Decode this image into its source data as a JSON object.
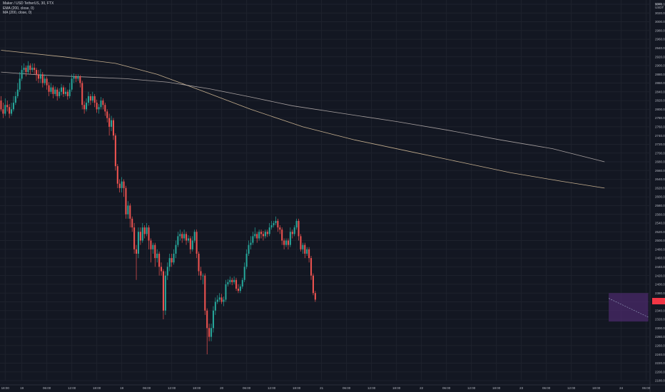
{
  "header": {
    "symbol_line": "Maker / USD TetherUS, 30, FTX",
    "ema_line": "EMA (200, close, 0)",
    "ma_line": "MA (200, close, 0)"
  },
  "axis": {
    "unit_line1": "USD",
    "unit_line2": "USDT"
  },
  "colors": {
    "background": "#131722",
    "grid": "#1e222d",
    "up": "#26a69a",
    "down": "#ef5350",
    "ema": "#ffe0b2",
    "ma": "#d7ccc8",
    "projection_box": "#4a2a6a",
    "price_tag": "#f23645"
  },
  "chart_data": {
    "type": "candlestick",
    "ylim": [
      2180,
      3040
    ],
    "y_ticks": [
      3040,
      3020,
      3000,
      2980,
      2960,
      2940,
      2920,
      2900,
      2880,
      2860,
      2840,
      2820,
      2800,
      2780,
      2760,
      2740,
      2720,
      2700,
      2680,
      2660,
      2640,
      2620,
      2600,
      2580,
      2560,
      2540,
      2520,
      2500,
      2480,
      2460,
      2440,
      2420,
      2400,
      2380,
      2360,
      2340,
      2320,
      2300,
      2280,
      2260,
      2240,
      2220,
      2200,
      2180
    ],
    "x_ticks": [
      {
        "label": "18:00",
        "i": 2
      },
      {
        "label": "19",
        "i": 10
      },
      {
        "label": "06:00",
        "i": 22
      },
      {
        "label": "12:00",
        "i": 34
      },
      {
        "label": "18:00",
        "i": 46
      },
      {
        "label": "19",
        "i": 58
      },
      {
        "label": "06:00",
        "i": 70
      },
      {
        "label": "12:00",
        "i": 82
      },
      {
        "label": "18:00",
        "i": 94
      },
      {
        "label": "20",
        "i": 106
      },
      {
        "label": "06:00",
        "i": 118
      },
      {
        "label": "12:00",
        "i": 130
      },
      {
        "label": "18:00",
        "i": 142
      },
      {
        "label": "21",
        "i": 154
      },
      {
        "label": "06:00",
        "i": 166
      },
      {
        "label": "12:00",
        "i": 178
      },
      {
        "label": "18:00",
        "i": 190
      },
      {
        "label": "22",
        "i": 202
      },
      {
        "label": "06:00",
        "i": 214
      },
      {
        "label": "12:00",
        "i": 226
      },
      {
        "label": "18:00",
        "i": 238
      },
      {
        "label": "23",
        "i": 250
      },
      {
        "label": "06:00",
        "i": 262
      },
      {
        "label": "12:00",
        "i": 274
      },
      {
        "label": "18:00",
        "i": 286
      },
      {
        "label": "24",
        "i": 298
      },
      {
        "label": "06:00",
        "i": 310
      }
    ],
    "candles": [
      [
        2820,
        2800,
        2830,
        2795
      ],
      [
        2800,
        2790,
        2815,
        2780
      ],
      [
        2790,
        2810,
        2825,
        2785
      ],
      [
        2810,
        2805,
        2820,
        2795
      ],
      [
        2805,
        2790,
        2812,
        2780
      ],
      [
        2790,
        2800,
        2815,
        2785
      ],
      [
        2800,
        2815,
        2830,
        2795
      ],
      [
        2815,
        2830,
        2840,
        2810
      ],
      [
        2830,
        2845,
        2860,
        2825
      ],
      [
        2845,
        2870,
        2885,
        2840
      ],
      [
        2870,
        2890,
        2900,
        2865
      ],
      [
        2890,
        2895,
        2905,
        2880
      ],
      [
        2895,
        2885,
        2900,
        2875
      ],
      [
        2885,
        2900,
        2910,
        2880
      ],
      [
        2900,
        2890,
        2905,
        2880
      ],
      [
        2890,
        2895,
        2905,
        2885
      ],
      [
        2895,
        2890,
        2905,
        2880
      ],
      [
        2890,
        2880,
        2895,
        2865
      ],
      [
        2880,
        2870,
        2890,
        2860
      ],
      [
        2870,
        2880,
        2892,
        2860
      ],
      [
        2880,
        2860,
        2885,
        2850
      ],
      [
        2860,
        2870,
        2880,
        2855
      ],
      [
        2870,
        2855,
        2875,
        2845
      ],
      [
        2855,
        2840,
        2862,
        2830
      ],
      [
        2840,
        2850,
        2860,
        2835
      ],
      [
        2850,
        2835,
        2855,
        2825
      ],
      [
        2835,
        2845,
        2852,
        2830
      ],
      [
        2845,
        2830,
        2850,
        2820
      ],
      [
        2830,
        2840,
        2848,
        2825
      ],
      [
        2840,
        2850,
        2858,
        2832
      ],
      [
        2850,
        2835,
        2855,
        2828
      ],
      [
        2835,
        2840,
        2850,
        2830
      ],
      [
        2840,
        2830,
        2845,
        2822
      ],
      [
        2830,
        2845,
        2860,
        2825
      ],
      [
        2845,
        2870,
        2880,
        2840
      ],
      [
        2870,
        2875,
        2882,
        2860
      ],
      [
        2875,
        2870,
        2880,
        2862
      ],
      [
        2870,
        2875,
        2880,
        2865
      ],
      [
        2875,
        2860,
        2878,
        2850
      ],
      [
        2860,
        2810,
        2865,
        2800
      ],
      [
        2810,
        2800,
        2818,
        2790
      ],
      [
        2800,
        2815,
        2825,
        2795
      ],
      [
        2815,
        2830,
        2840,
        2808
      ],
      [
        2830,
        2820,
        2835,
        2810
      ],
      [
        2820,
        2830,
        2840,
        2815
      ],
      [
        2830,
        2815,
        2835,
        2805
      ],
      [
        2815,
        2800,
        2822,
        2792
      ],
      [
        2800,
        2805,
        2812,
        2790
      ],
      [
        2805,
        2820,
        2828,
        2800
      ],
      [
        2820,
        2810,
        2825,
        2800
      ],
      [
        2810,
        2795,
        2815,
        2785
      ],
      [
        2795,
        2780,
        2800,
        2770
      ],
      [
        2780,
        2760,
        2790,
        2740
      ],
      [
        2760,
        2775,
        2785,
        2750
      ],
      [
        2775,
        2740,
        2780,
        2730
      ],
      [
        2740,
        2670,
        2745,
        2660
      ],
      [
        2670,
        2630,
        2675,
        2620
      ],
      [
        2630,
        2620,
        2640,
        2610
      ],
      [
        2620,
        2635,
        2645,
        2610
      ],
      [
        2635,
        2620,
        2640,
        2600
      ],
      [
        2620,
        2560,
        2625,
        2550
      ],
      [
        2560,
        2580,
        2590,
        2550
      ],
      [
        2580,
        2550,
        2585,
        2530
      ],
      [
        2550,
        2530,
        2555,
        2520
      ],
      [
        2530,
        2480,
        2540,
        2470
      ],
      [
        2480,
        2470,
        2490,
        2410
      ],
      [
        2470,
        2520,
        2530,
        2460
      ],
      [
        2520,
        2500,
        2530,
        2490
      ],
      [
        2500,
        2530,
        2540,
        2495
      ],
      [
        2530,
        2515,
        2535,
        2505
      ],
      [
        2515,
        2530,
        2540,
        2510
      ],
      [
        2530,
        2500,
        2535,
        2480
      ],
      [
        2500,
        2480,
        2505,
        2450
      ],
      [
        2480,
        2490,
        2495,
        2470
      ],
      [
        2490,
        2460,
        2495,
        2440
      ],
      [
        2460,
        2470,
        2480,
        2450
      ],
      [
        2470,
        2440,
        2475,
        2420
      ],
      [
        2440,
        2430,
        2450,
        2420
      ],
      [
        2430,
        2340,
        2435,
        2320
      ],
      [
        2340,
        2420,
        2430,
        2330
      ],
      [
        2420,
        2440,
        2450,
        2410
      ],
      [
        2440,
        2460,
        2470,
        2430
      ],
      [
        2460,
        2450,
        2470,
        2440
      ],
      [
        2450,
        2470,
        2480,
        2445
      ],
      [
        2470,
        2490,
        2500,
        2460
      ],
      [
        2490,
        2510,
        2520,
        2485
      ],
      [
        2510,
        2515,
        2525,
        2500
      ],
      [
        2515,
        2505,
        2520,
        2495
      ],
      [
        2505,
        2515,
        2525,
        2500
      ],
      [
        2515,
        2500,
        2520,
        2490
      ],
      [
        2500,
        2505,
        2512,
        2495
      ],
      [
        2505,
        2480,
        2510,
        2470
      ],
      [
        2480,
        2500,
        2510,
        2475
      ],
      [
        2500,
        2520,
        2525,
        2495
      ],
      [
        2520,
        2470,
        2525,
        2460
      ],
      [
        2470,
        2430,
        2475,
        2420
      ],
      [
        2430,
        2420,
        2440,
        2410
      ],
      [
        2420,
        2420,
        2425,
        2400
      ],
      [
        2420,
        2340,
        2425,
        2330
      ],
      [
        2340,
        2300,
        2345,
        2240
      ],
      [
        2300,
        2280,
        2310,
        2270
      ],
      [
        2280,
        2300,
        2310,
        2270
      ],
      [
        2300,
        2340,
        2350,
        2290
      ],
      [
        2340,
        2360,
        2370,
        2330
      ],
      [
        2360,
        2365,
        2375,
        2355
      ],
      [
        2365,
        2370,
        2380,
        2360
      ],
      [
        2370,
        2360,
        2378,
        2355
      ],
      [
        2360,
        2365,
        2372,
        2350
      ],
      [
        2365,
        2400,
        2410,
        2360
      ],
      [
        2400,
        2405,
        2412,
        2395
      ],
      [
        2405,
        2410,
        2418,
        2400
      ],
      [
        2410,
        2405,
        2415,
        2398
      ],
      [
        2405,
        2410,
        2418,
        2400
      ],
      [
        2410,
        2390,
        2415,
        2385
      ],
      [
        2390,
        2385,
        2400,
        2380
      ],
      [
        2385,
        2395,
        2400,
        2380
      ],
      [
        2395,
        2410,
        2415,
        2390
      ],
      [
        2410,
        2440,
        2450,
        2405
      ],
      [
        2440,
        2470,
        2480,
        2435
      ],
      [
        2470,
        2490,
        2500,
        2465
      ],
      [
        2490,
        2495,
        2510,
        2480
      ],
      [
        2495,
        2510,
        2520,
        2490
      ],
      [
        2510,
        2515,
        2530,
        2505
      ],
      [
        2515,
        2505,
        2520,
        2495
      ],
      [
        2505,
        2520,
        2525,
        2500
      ],
      [
        2520,
        2515,
        2525,
        2505
      ],
      [
        2515,
        2510,
        2522,
        2500
      ],
      [
        2510,
        2520,
        2525,
        2505
      ],
      [
        2520,
        2515,
        2525,
        2508
      ],
      [
        2515,
        2530,
        2540,
        2510
      ],
      [
        2530,
        2535,
        2545,
        2525
      ],
      [
        2535,
        2540,
        2545,
        2530
      ],
      [
        2540,
        2545,
        2555,
        2535
      ],
      [
        2545,
        2530,
        2550,
        2520
      ],
      [
        2530,
        2525,
        2535,
        2515
      ],
      [
        2525,
        2500,
        2530,
        2490
      ],
      [
        2500,
        2490,
        2505,
        2480
      ],
      [
        2490,
        2500,
        2505,
        2485
      ],
      [
        2500,
        2490,
        2505,
        2480
      ],
      [
        2490,
        2520,
        2530,
        2485
      ],
      [
        2520,
        2515,
        2525,
        2505
      ],
      [
        2515,
        2530,
        2535,
        2510
      ],
      [
        2530,
        2545,
        2550,
        2525
      ],
      [
        2545,
        2510,
        2550,
        2500
      ],
      [
        2510,
        2480,
        2515,
        2475
      ],
      [
        2480,
        2490,
        2495,
        2470
      ],
      [
        2490,
        2470,
        2495,
        2460
      ],
      [
        2470,
        2480,
        2485,
        2465
      ],
      [
        2480,
        2460,
        2485,
        2450
      ],
      [
        2460,
        2420,
        2465,
        2410
      ],
      [
        2420,
        2380,
        2425,
        2375
      ],
      [
        2380,
        2365,
        2385,
        2360
      ]
    ],
    "ema": [
      [
        0,
        2935
      ],
      [
        30,
        2920
      ],
      [
        55,
        2905
      ],
      [
        75,
        2880
      ],
      [
        95,
        2845
      ],
      [
        120,
        2800
      ],
      [
        145,
        2760
      ],
      [
        170,
        2730
      ],
      [
        195,
        2705
      ],
      [
        220,
        2680
      ],
      [
        245,
        2655
      ],
      [
        270,
        2635
      ],
      [
        290,
        2620
      ]
    ],
    "ma": [
      [
        0,
        2885
      ],
      [
        20,
        2878
      ],
      [
        40,
        2874
      ],
      [
        60,
        2870
      ],
      [
        80,
        2862
      ],
      [
        100,
        2847
      ],
      [
        120,
        2828
      ],
      [
        140,
        2808
      ],
      [
        165,
        2790
      ],
      [
        190,
        2772
      ],
      [
        215,
        2752
      ],
      [
        240,
        2730
      ],
      [
        265,
        2710
      ],
      [
        290,
        2680
      ]
    ],
    "projection": {
      "from_i": 292,
      "to_i": 311,
      "top": 2380,
      "bottom": 2315,
      "line_from": 2368,
      "line_to": 2325
    }
  }
}
